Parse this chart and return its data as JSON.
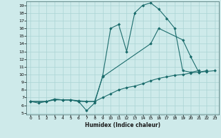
{
  "xlabel": "Humidex (Indice chaleur)",
  "background_color": "#ceeaea",
  "line_color": "#1a6b6b",
  "grid_color": "#aad4d4",
  "xlim": [
    -0.5,
    23.5
  ],
  "ylim": [
    4.8,
    19.5
  ],
  "xticks": [
    0,
    1,
    2,
    3,
    4,
    5,
    6,
    7,
    8,
    9,
    10,
    11,
    12,
    13,
    14,
    15,
    16,
    17,
    18,
    19,
    20,
    21,
    22,
    23
  ],
  "yticks": [
    5,
    6,
    7,
    8,
    9,
    10,
    11,
    12,
    13,
    14,
    15,
    16,
    17,
    18,
    19
  ],
  "curve1_x": [
    0,
    1,
    2,
    3,
    4,
    5,
    6,
    7,
    8,
    9,
    10,
    11,
    12,
    13,
    14,
    15,
    16,
    17,
    18,
    19,
    20,
    21
  ],
  "curve1_y": [
    6.5,
    6.3,
    6.5,
    6.8,
    6.7,
    6.7,
    6.5,
    5.3,
    6.3,
    9.8,
    16.0,
    16.5,
    13.0,
    18.0,
    19.0,
    19.3,
    18.5,
    17.3,
    16.0,
    10.5,
    10.3,
    10.5
  ],
  "curve2_x": [
    0,
    2,
    3,
    4,
    5,
    6,
    7,
    8,
    9,
    15,
    16,
    19,
    20,
    21,
    22
  ],
  "curve2_y": [
    6.5,
    6.5,
    6.8,
    6.7,
    6.7,
    6.5,
    6.5,
    6.5,
    9.7,
    14.0,
    16.0,
    14.5,
    12.3,
    10.3,
    10.5
  ],
  "curve3_x": [
    0,
    2,
    3,
    4,
    5,
    6,
    7,
    8,
    9,
    10,
    11,
    12,
    13,
    14,
    15,
    16,
    17,
    18,
    19,
    20,
    21,
    22,
    23
  ],
  "curve3_y": [
    6.5,
    6.5,
    6.7,
    6.7,
    6.7,
    6.6,
    6.5,
    6.5,
    7.0,
    7.5,
    8.0,
    8.3,
    8.5,
    8.8,
    9.2,
    9.5,
    9.7,
    9.9,
    10.0,
    10.2,
    10.3,
    10.4,
    10.5
  ]
}
